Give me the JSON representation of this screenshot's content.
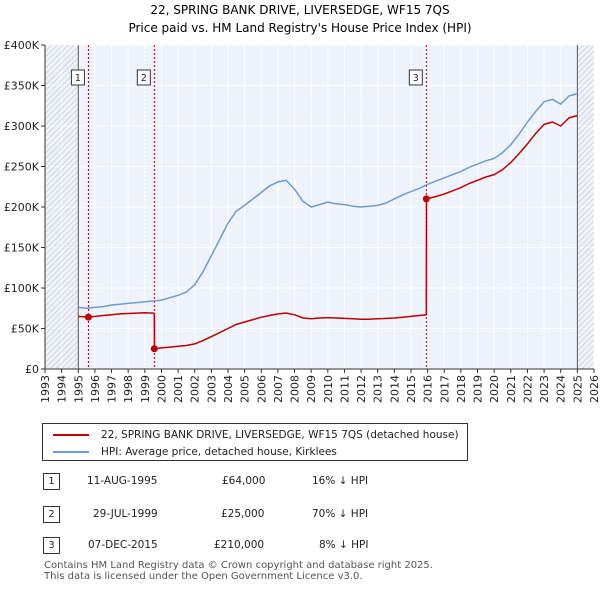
{
  "chart_data": {
    "type": "line",
    "title": "22, SPRING BANK DRIVE, LIVERSEDGE, WF15 7QS",
    "subtitle": "Price paid vs. HM Land Registry's House Price Index (HPI)",
    "xlabel": "",
    "ylabel": "",
    "xlim": [
      1993,
      2026
    ],
    "ylim": [
      0,
      400000
    ],
    "x_ticks": [
      1993,
      1994,
      1995,
      1996,
      1997,
      1998,
      1999,
      2000,
      2001,
      2002,
      2003,
      2004,
      2005,
      2006,
      2007,
      2008,
      2009,
      2010,
      2011,
      2012,
      2013,
      2014,
      2015,
      2016,
      2017,
      2018,
      2019,
      2020,
      2021,
      2022,
      2023,
      2024,
      2025,
      2026
    ],
    "y_ticks": [
      {
        "value": 0,
        "label": "£0"
      },
      {
        "value": 50000,
        "label": "£50K"
      },
      {
        "value": 100000,
        "label": "£100K"
      },
      {
        "value": 150000,
        "label": "£150K"
      },
      {
        "value": 200000,
        "label": "£200K"
      },
      {
        "value": 250000,
        "label": "£250K"
      },
      {
        "value": 300000,
        "label": "£300K"
      },
      {
        "value": 350000,
        "label": "£350K"
      },
      {
        "value": 400000,
        "label": "£400K"
      }
    ],
    "grid": true,
    "hatched_ranges": [
      [
        1993,
        1995.0
      ],
      [
        2025.0,
        2026
      ]
    ],
    "series": [
      {
        "name": "HPI: Average price, detached house, Kirklees",
        "color": "#6b9bd1",
        "x": [
          1995.0,
          1995.5,
          1996.0,
          1996.5,
          1997.0,
          1997.5,
          1998.0,
          1998.5,
          1999.0,
          1999.5,
          2000.0,
          2000.5,
          2001.0,
          2001.5,
          2002.0,
          2002.5,
          2003.0,
          2003.5,
          2004.0,
          2004.5,
          2005.0,
          2005.5,
          2006.0,
          2006.5,
          2007.0,
          2007.5,
          2008.0,
          2008.5,
          2009.0,
          2009.5,
          2010.0,
          2010.5,
          2011.0,
          2011.5,
          2012.0,
          2012.5,
          2013.0,
          2013.5,
          2014.0,
          2014.5,
          2015.0,
          2015.5,
          2016.0,
          2016.5,
          2017.0,
          2017.5,
          2018.0,
          2018.5,
          2019.0,
          2019.5,
          2020.0,
          2020.5,
          2021.0,
          2021.5,
          2022.0,
          2022.5,
          2023.0,
          2023.5,
          2024.0,
          2024.5,
          2025.0
        ],
        "values": [
          76000,
          75000,
          76000,
          77000,
          79000,
          80000,
          81000,
          82000,
          83000,
          84000,
          85000,
          88000,
          91000,
          95000,
          104000,
          120000,
          140000,
          160000,
          180000,
          195000,
          202000,
          210000,
          218000,
          226000,
          231000,
          233000,
          222000,
          207000,
          200000,
          203000,
          206000,
          204000,
          203000,
          201000,
          200000,
          201000,
          202000,
          205000,
          210000,
          215000,
          219000,
          223000,
          228000,
          232000,
          236000,
          240000,
          244000,
          249000,
          253000,
          257000,
          260000,
          267000,
          277000,
          290000,
          305000,
          318000,
          330000,
          333000,
          327000,
          337000,
          340000
        ]
      },
      {
        "name": "22, SPRING BANK DRIVE, LIVERSEDGE, WF15 7QS (detached house)",
        "color": "#c00000",
        "x": [
          1995.0,
          1995.61,
          1996.0,
          1996.5,
          1997.0,
          1997.5,
          1998.0,
          1998.5,
          1999.0,
          1999.5,
          1999.57,
          1999.58,
          2000.0,
          2000.5,
          2001.0,
          2001.5,
          2002.0,
          2002.5,
          2003.0,
          2003.5,
          2004.0,
          2004.5,
          2005.0,
          2005.5,
          2006.0,
          2006.5,
          2007.0,
          2007.5,
          2008.0,
          2008.5,
          2009.0,
          2009.5,
          2010.0,
          2010.5,
          2011.0,
          2011.5,
          2012.0,
          2012.5,
          2013.0,
          2013.5,
          2014.0,
          2014.5,
          2015.0,
          2015.5,
          2015.92,
          2015.93,
          2016.5,
          2017.0,
          2017.5,
          2018.0,
          2018.5,
          2019.0,
          2019.5,
          2020.0,
          2020.5,
          2021.0,
          2021.5,
          2022.0,
          2022.5,
          2023.0,
          2023.5,
          2024.0,
          2024.5,
          2025.0
        ],
        "values": [
          65000,
          64000,
          65000,
          66000,
          67000,
          68000,
          68500,
          69000,
          69500,
          69000,
          68500,
          25000,
          26000,
          27000,
          28000,
          29000,
          31000,
          35000,
          40000,
          45000,
          50000,
          55000,
          58000,
          61000,
          64000,
          66000,
          68000,
          69000,
          67000,
          63000,
          62000,
          63000,
          63500,
          63000,
          62500,
          62000,
          61500,
          61500,
          62000,
          62500,
          63000,
          64000,
          65000,
          66000,
          67000,
          210000,
          213000,
          216000,
          220000,
          224000,
          229000,
          233000,
          237000,
          240000,
          246000,
          255000,
          266000,
          278000,
          291000,
          302000,
          305000,
          300000,
          310000,
          313000
        ]
      }
    ],
    "transactions": [
      {
        "marker": "1",
        "x": 1995.61,
        "value": 64000
      },
      {
        "marker": "2",
        "x": 1999.57,
        "value": 25000
      },
      {
        "marker": "3",
        "x": 2015.92,
        "value": 210000
      }
    ]
  },
  "legend": {
    "property_label": "22, SPRING BANK DRIVE, LIVERSEDGE, WF15 7QS (detached house)",
    "hpi_label": "HPI: Average price, detached house, Kirklees",
    "property_color": "#c00000",
    "hpi_color": "#6b9bd1"
  },
  "transactions_table": [
    {
      "marker": "1",
      "date": "11-AUG-1995",
      "price": "£64,000",
      "hpi_diff": "16% ↓ HPI"
    },
    {
      "marker": "2",
      "date": "29-JUL-1999",
      "price": "£25,000",
      "hpi_diff": "70% ↓ HPI"
    },
    {
      "marker": "3",
      "date": "07-DEC-2015",
      "price": "£210,000",
      "hpi_diff": "8% ↓ HPI"
    }
  ],
  "footer": {
    "line1": "Contains HM Land Registry data © Crown copyright and database right 2025.",
    "line2": "This data is licensed under the Open Government Licence v3.0."
  }
}
